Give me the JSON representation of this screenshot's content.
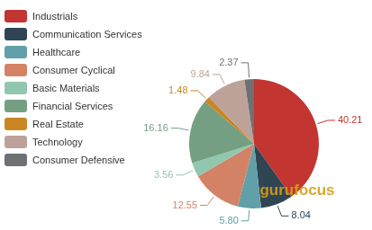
{
  "chart_data": {
    "type": "pie",
    "categories": [
      "Industrials",
      "Communication Services",
      "Healthcare",
      "Consumer Cyclical",
      "Basic Materials",
      "Financial Services",
      "Real Estate",
      "Technology",
      "Consumer Defensive"
    ],
    "values": [
      40.21,
      8.04,
      5.8,
      12.55,
      3.56,
      16.16,
      1.48,
      9.84,
      2.37
    ],
    "value_labels": [
      "40.21",
      "8.04",
      "5.80",
      "12.55",
      "3.56",
      "16.16",
      "1.48",
      "9.84",
      "2.37"
    ],
    "colors": [
      "#c23531",
      "#2f4554",
      "#61a0a8",
      "#d48265",
      "#91c7ae",
      "#749f83",
      "#ca8622",
      "#bda29a",
      "#6e7074"
    ],
    "data_labels": true,
    "legend": "top-left",
    "annotations": [
      "gurufocus"
    ]
  }
}
